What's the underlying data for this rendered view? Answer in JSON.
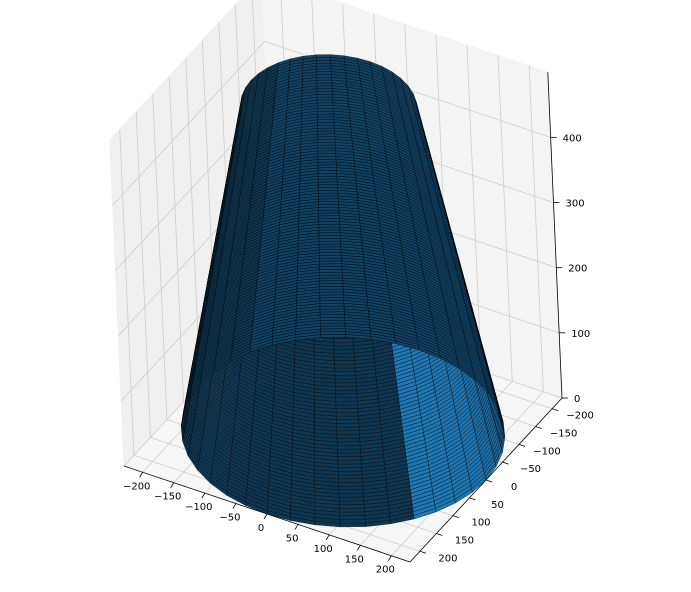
{
  "chart_data": {
    "type": "surface3d",
    "title": "",
    "description_shape": "truncated cone (frustum), open top",
    "surface_color": "#1f77b4",
    "edge_color": "#000000",
    "pane_color": "#f2f2f2",
    "grid": true,
    "x_axis": {
      "label": "",
      "ticks": [
        -200,
        -150,
        -100,
        -50,
        0,
        50,
        100,
        150,
        200
      ],
      "range": [
        -230,
        230
      ]
    },
    "y_axis": {
      "label": "",
      "ticks": [
        -200,
        -150,
        -100,
        -50,
        0,
        50,
        100,
        150,
        200
      ],
      "range": [
        -230,
        230
      ]
    },
    "z_axis": {
      "label": "",
      "ticks": [
        0,
        100,
        200,
        300,
        400
      ],
      "range": [
        0,
        500
      ]
    },
    "surface": {
      "base_radius": 230,
      "top_radius": 125,
      "base_z": 0,
      "top_z": 500,
      "angular_segments": 40,
      "height_rings": 100
    }
  }
}
